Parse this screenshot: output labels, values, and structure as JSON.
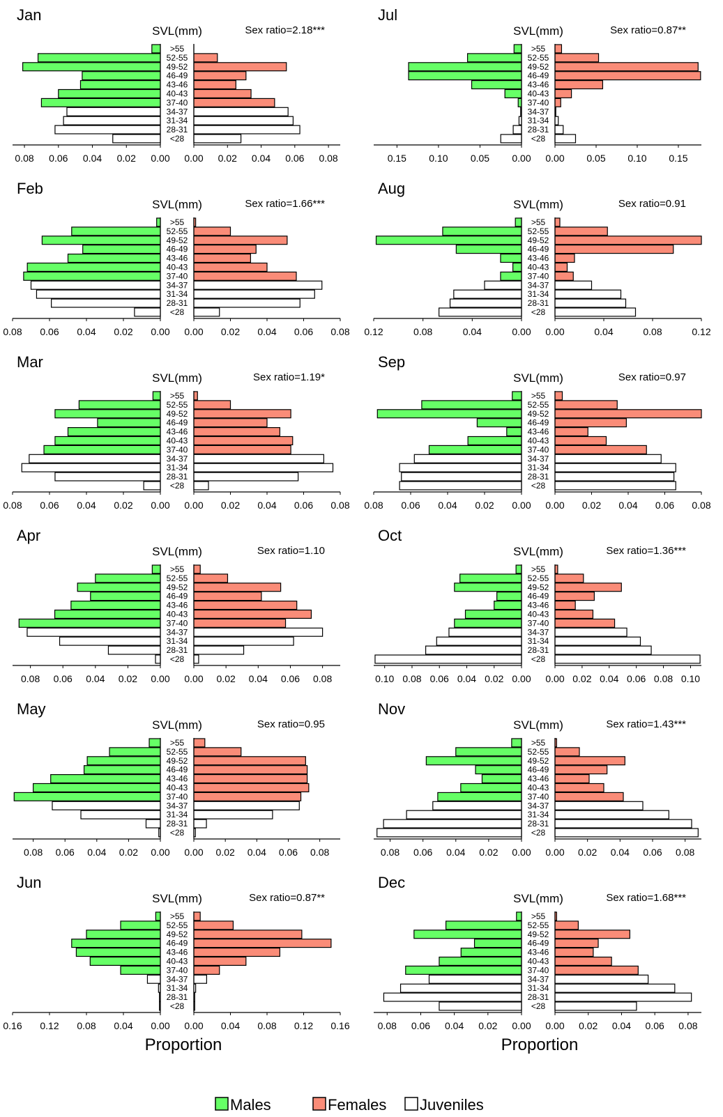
{
  "figure": {
    "axis_label": "Proportion",
    "center_label": "SVL(mm)",
    "legend": [
      {
        "label": "Males",
        "key": "male"
      },
      {
        "label": "Females",
        "key": "female"
      },
      {
        "label": "Juveniles",
        "key": "juvenile"
      }
    ]
  },
  "colors": {
    "male": "#66ff66",
    "female": "#fa8c78",
    "juvenile": "#ffffff",
    "stroke": "#000000"
  },
  "chart_data": [
    {
      "type": "bar",
      "month": "Jan",
      "annotation": "Sex ratio=2.18***",
      "categories": [
        ">55",
        "52-55",
        "49-52",
        "46-49",
        "43-46",
        "40-43",
        "37-40",
        "34-37",
        "31-34",
        "28-31",
        "<28"
      ],
      "x_left": [
        "0.08",
        "0.06",
        "0.04",
        "0.02",
        "0.00"
      ],
      "x_right": [
        "0.00",
        "0.02",
        "0.04",
        "0.06",
        "0.08"
      ],
      "xlim": [
        0,
        0.087
      ],
      "left": [
        0.005,
        0.072,
        0.081,
        0.046,
        0.047,
        0.06,
        0.07,
        0.055,
        0.057,
        0.062,
        0.028
      ],
      "right": [
        0,
        0.014,
        0.055,
        0.031,
        0.025,
        0.034,
        0.048,
        0.056,
        0.059,
        0.063,
        0.028
      ],
      "left_kind": [
        "male",
        "male",
        "male",
        "male",
        "male",
        "male",
        "male",
        "juvenile",
        "juvenile",
        "juvenile",
        "juvenile"
      ],
      "right_kind": [
        "female",
        "female",
        "female",
        "female",
        "female",
        "female",
        "female",
        "juvenile",
        "juvenile",
        "juvenile",
        "juvenile"
      ]
    },
    {
      "type": "bar",
      "month": "Jul",
      "annotation": "Sex ratio=0.87**",
      "categories": [
        ">55",
        "52-55",
        "49-52",
        "46-49",
        "43-46",
        "40-43",
        "37-40",
        "34-37",
        "31-34",
        "28-31",
        "<28"
      ],
      "x_left": [
        "0.15",
        "0.10",
        "0.05",
        "0.00"
      ],
      "x_right": [
        "0.00",
        "0.05",
        "0.10",
        "0.15"
      ],
      "xlim": [
        0,
        0.178
      ],
      "left": [
        0.009,
        0.065,
        0.136,
        0.136,
        0.06,
        0.02,
        0.004,
        0.001,
        0.003,
        0.01,
        0.025
      ],
      "right": [
        0.008,
        0.053,
        0.174,
        0.177,
        0.058,
        0.02,
        0.007,
        0.001,
        0.004,
        0.01,
        0.025
      ],
      "left_kind": [
        "male",
        "male",
        "male",
        "male",
        "male",
        "male",
        "male",
        "juvenile",
        "juvenile",
        "juvenile",
        "juvenile"
      ],
      "right_kind": [
        "female",
        "female",
        "female",
        "female",
        "female",
        "female",
        "female",
        "juvenile",
        "juvenile",
        "juvenile",
        "juvenile"
      ]
    },
    {
      "type": "bar",
      "month": "Feb",
      "annotation": "Sex ratio=1.66***",
      "categories": [
        ">55",
        "52-55",
        "49-52",
        "46-49",
        "43-46",
        "40-43",
        "37-40",
        "34-37",
        "31-34",
        "28-31",
        "<28"
      ],
      "x_left": [
        "0.08",
        "0.06",
        "0.04",
        "0.02",
        "0.00"
      ],
      "x_right": [
        "0.00",
        "0.02",
        "0.04",
        "0.06",
        "0.08"
      ],
      "xlim": [
        0,
        0.08
      ],
      "left": [
        0.002,
        0.048,
        0.064,
        0.042,
        0.05,
        0.072,
        0.074,
        0.07,
        0.067,
        0.059,
        0.014
      ],
      "right": [
        0.001,
        0.02,
        0.051,
        0.034,
        0.031,
        0.04,
        0.056,
        0.07,
        0.066,
        0.058,
        0.014
      ],
      "left_kind": [
        "male",
        "male",
        "male",
        "male",
        "male",
        "male",
        "male",
        "juvenile",
        "juvenile",
        "juvenile",
        "juvenile"
      ],
      "right_kind": [
        "female",
        "female",
        "female",
        "female",
        "female",
        "female",
        "female",
        "juvenile",
        "juvenile",
        "juvenile",
        "juvenile"
      ]
    },
    {
      "type": "bar",
      "month": "Aug",
      "annotation": "Sex ratio=0.91",
      "categories": [
        ">55",
        "52-55",
        "49-52",
        "46-49",
        "43-46",
        "40-43",
        "37-40",
        "34-37",
        "31-34",
        "28-31",
        "<28"
      ],
      "x_left": [
        "0.12",
        "0.08",
        "0.04",
        "0.00"
      ],
      "x_right": [
        "0.00",
        "0.04",
        "0.08",
        "0.12"
      ],
      "xlim": [
        0,
        0.12
      ],
      "left": [
        0.005,
        0.064,
        0.118,
        0.053,
        0.017,
        0.007,
        0.017,
        0.03,
        0.055,
        0.058,
        0.067
      ],
      "right": [
        0.004,
        0.043,
        0.12,
        0.097,
        0.016,
        0.01,
        0.015,
        0.03,
        0.054,
        0.058,
        0.066
      ],
      "left_kind": [
        "male",
        "male",
        "male",
        "male",
        "male",
        "male",
        "male",
        "juvenile",
        "juvenile",
        "juvenile",
        "juvenile"
      ],
      "right_kind": [
        "female",
        "female",
        "female",
        "female",
        "female",
        "female",
        "female",
        "juvenile",
        "juvenile",
        "juvenile",
        "juvenile"
      ]
    },
    {
      "type": "bar",
      "month": "Mar",
      "annotation": "Sex ratio=1.19*",
      "categories": [
        ">55",
        "52-55",
        "49-52",
        "46-49",
        "43-46",
        "40-43",
        "37-40",
        "34-37",
        "31-34",
        "28-31",
        "<28"
      ],
      "x_left": [
        "0.08",
        "0.06",
        "0.04",
        "0.02",
        "0.00"
      ],
      "x_right": [
        "0.00",
        "0.02",
        "0.04",
        "0.06",
        "0.08"
      ],
      "xlim": [
        0,
        0.08
      ],
      "left": [
        0.004,
        0.044,
        0.057,
        0.034,
        0.05,
        0.057,
        0.063,
        0.071,
        0.075,
        0.057,
        0.009
      ],
      "right": [
        0.002,
        0.02,
        0.053,
        0.04,
        0.047,
        0.054,
        0.053,
        0.071,
        0.076,
        0.057,
        0.008
      ],
      "left_kind": [
        "male",
        "male",
        "male",
        "male",
        "male",
        "male",
        "male",
        "juvenile",
        "juvenile",
        "juvenile",
        "juvenile"
      ],
      "right_kind": [
        "female",
        "female",
        "female",
        "female",
        "female",
        "female",
        "female",
        "juvenile",
        "juvenile",
        "juvenile",
        "juvenile"
      ]
    },
    {
      "type": "bar",
      "month": "Sep",
      "annotation": "Sex ratio=0.97",
      "categories": [
        ">55",
        "52-55",
        "49-52",
        "46-49",
        "43-46",
        "40-43",
        "37-40",
        "34-37",
        "31-34",
        "28-31",
        "<28"
      ],
      "x_left": [
        "0.08",
        "0.06",
        "0.04",
        "0.02",
        "0.00"
      ],
      "x_right": [
        "0.00",
        "0.02",
        "0.04",
        "0.06",
        "0.08"
      ],
      "xlim": [
        0,
        0.08
      ],
      "left": [
        0.005,
        0.054,
        0.078,
        0.024,
        0.008,
        0.029,
        0.05,
        0.058,
        0.066,
        0.065,
        0.066
      ],
      "right": [
        0.004,
        0.034,
        0.08,
        0.039,
        0.018,
        0.028,
        0.05,
        0.058,
        0.066,
        0.065,
        0.066
      ],
      "left_kind": [
        "male",
        "male",
        "male",
        "male",
        "male",
        "male",
        "male",
        "juvenile",
        "juvenile",
        "juvenile",
        "juvenile"
      ],
      "right_kind": [
        "female",
        "female",
        "female",
        "female",
        "female",
        "female",
        "female",
        "juvenile",
        "juvenile",
        "juvenile",
        "juvenile"
      ]
    },
    {
      "type": "bar",
      "month": "Apr",
      "annotation": "Sex ratio=1.10",
      "categories": [
        ">55",
        "52-55",
        "49-52",
        "46-49",
        "43-46",
        "40-43",
        "37-40",
        "34-37",
        "31-34",
        "28-31",
        "<28"
      ],
      "x_left": [
        "0.08",
        "0.06",
        "0.04",
        "0.02",
        "0.00"
      ],
      "x_right": [
        "0.00",
        "0.02",
        "0.04",
        "0.06",
        "0.08"
      ],
      "xlim": [
        0,
        0.091
      ],
      "left": [
        0.005,
        0.04,
        0.051,
        0.043,
        0.055,
        0.065,
        0.087,
        0.082,
        0.062,
        0.032,
        0.003
      ],
      "right": [
        0.004,
        0.021,
        0.054,
        0.042,
        0.064,
        0.073,
        0.057,
        0.08,
        0.062,
        0.031,
        0.003
      ],
      "left_kind": [
        "male",
        "male",
        "male",
        "male",
        "male",
        "male",
        "male",
        "juvenile",
        "juvenile",
        "juvenile",
        "juvenile"
      ],
      "right_kind": [
        "female",
        "female",
        "female",
        "female",
        "female",
        "female",
        "female",
        "juvenile",
        "juvenile",
        "juvenile",
        "juvenile"
      ]
    },
    {
      "type": "bar",
      "month": "Oct",
      "annotation": "Sex ratio=1.36***",
      "categories": [
        ">55",
        "52-55",
        "49-52",
        "46-49",
        "43-46",
        "40-43",
        "37-40",
        "34-37",
        "31-34",
        "28-31",
        "<28"
      ],
      "x_left": [
        "0.10",
        "0.08",
        "0.06",
        "0.04",
        "0.02",
        "0.00"
      ],
      "x_right": [
        "0.00",
        "0.02",
        "0.04",
        "0.06",
        "0.08",
        "0.10"
      ],
      "xlim": [
        0,
        0.108
      ],
      "left": [
        0.004,
        0.045,
        0.049,
        0.018,
        0.02,
        0.041,
        0.049,
        0.053,
        0.062,
        0.07,
        0.107
      ],
      "right": [
        0.002,
        0.021,
        0.049,
        0.029,
        0.015,
        0.028,
        0.044,
        0.053,
        0.063,
        0.071,
        0.107
      ],
      "left_kind": [
        "male",
        "male",
        "male",
        "male",
        "male",
        "male",
        "male",
        "juvenile",
        "juvenile",
        "juvenile",
        "juvenile"
      ],
      "right_kind": [
        "female",
        "female",
        "female",
        "female",
        "female",
        "female",
        "female",
        "juvenile",
        "juvenile",
        "juvenile",
        "juvenile"
      ]
    },
    {
      "type": "bar",
      "month": "May",
      "annotation": "Sex ratio=0.95",
      "categories": [
        ">55",
        "52-55",
        "49-52",
        "46-49",
        "43-46",
        "40-43",
        "37-40",
        "34-37",
        "31-34",
        "28-31",
        "<28"
      ],
      "x_left": [
        "0.08",
        "0.06",
        "0.04",
        "0.02",
        "0.00"
      ],
      "x_right": [
        "0.00",
        "0.02",
        "0.04",
        "0.06",
        "0.08"
      ],
      "xlim": [
        0,
        0.093
      ],
      "left": [
        0.007,
        0.032,
        0.046,
        0.048,
        0.069,
        0.08,
        0.092,
        0.068,
        0.05,
        0.009,
        0.001
      ],
      "right": [
        0.007,
        0.03,
        0.071,
        0.072,
        0.072,
        0.073,
        0.068,
        0.067,
        0.05,
        0.008,
        0.001
      ],
      "left_kind": [
        "male",
        "male",
        "male",
        "male",
        "male",
        "male",
        "male",
        "juvenile",
        "juvenile",
        "juvenile",
        "juvenile"
      ],
      "right_kind": [
        "female",
        "female",
        "female",
        "female",
        "female",
        "female",
        "female",
        "juvenile",
        "juvenile",
        "juvenile",
        "juvenile"
      ]
    },
    {
      "type": "bar",
      "month": "Nov",
      "annotation": "Sex ratio=1.43***",
      "categories": [
        ">55",
        "52-55",
        "49-52",
        "46-49",
        "43-46",
        "40-43",
        "37-40",
        "34-37",
        "31-34",
        "28-31",
        "<28"
      ],
      "x_left": [
        "0.08",
        "0.06",
        "0.04",
        "0.02",
        "0.00"
      ],
      "x_right": [
        "0.00",
        "0.02",
        "0.04",
        "0.06",
        "0.08"
      ],
      "xlim": [
        0,
        0.09
      ],
      "left": [
        0.006,
        0.04,
        0.058,
        0.028,
        0.024,
        0.037,
        0.051,
        0.054,
        0.07,
        0.084,
        0.088
      ],
      "right": [
        0.001,
        0.015,
        0.043,
        0.032,
        0.021,
        0.03,
        0.042,
        0.054,
        0.07,
        0.084,
        0.088
      ],
      "left_kind": [
        "male",
        "male",
        "male",
        "male",
        "male",
        "male",
        "male",
        "juvenile",
        "juvenile",
        "juvenile",
        "juvenile"
      ],
      "right_kind": [
        "female",
        "female",
        "female",
        "female",
        "female",
        "female",
        "female",
        "juvenile",
        "juvenile",
        "juvenile",
        "juvenile"
      ]
    },
    {
      "type": "bar",
      "month": "Jun",
      "annotation": "Sex ratio=0.87**",
      "categories": [
        ">55",
        "52-55",
        "49-52",
        "46-49",
        "43-46",
        "40-43",
        "37-40",
        "34-37",
        "31-34",
        "28-31",
        "<28"
      ],
      "x_left": [
        "0.16",
        "0.12",
        "0.08",
        "0.04",
        "0.00"
      ],
      "x_right": [
        "0.00",
        "0.04",
        "0.08",
        "0.12",
        "0.16"
      ],
      "xlim": [
        0,
        0.16
      ],
      "left": [
        0.005,
        0.043,
        0.08,
        0.096,
        0.091,
        0.076,
        0.043,
        0.014,
        0.002,
        0.001,
        0.001
      ],
      "right": [
        0.007,
        0.043,
        0.118,
        0.15,
        0.094,
        0.057,
        0.028,
        0.014,
        0.002,
        0.001,
        0.001
      ],
      "left_kind": [
        "male",
        "male",
        "male",
        "male",
        "male",
        "male",
        "male",
        "juvenile",
        "juvenile",
        "juvenile",
        "juvenile"
      ],
      "right_kind": [
        "female",
        "female",
        "female",
        "female",
        "female",
        "female",
        "female",
        "juvenile",
        "juvenile",
        "juvenile",
        "juvenile"
      ]
    },
    {
      "type": "bar",
      "month": "Dec",
      "annotation": "Sex ratio=1.68***",
      "categories": [
        ">55",
        "52-55",
        "49-52",
        "46-49",
        "43-46",
        "40-43",
        "37-40",
        "34-37",
        "31-34",
        "28-31",
        "<28"
      ],
      "x_left": [
        "0.08",
        "0.06",
        "0.04",
        "0.02",
        "0.00"
      ],
      "x_right": [
        "0.00",
        "0.02",
        "0.04",
        "0.06",
        "0.08"
      ],
      "xlim": [
        0,
        0.088
      ],
      "left": [
        0.003,
        0.045,
        0.064,
        0.028,
        0.036,
        0.049,
        0.069,
        0.055,
        0.072,
        0.082,
        0.049
      ],
      "right": [
        0.001,
        0.014,
        0.045,
        0.026,
        0.023,
        0.034,
        0.05,
        0.056,
        0.072,
        0.082,
        0.049
      ],
      "left_kind": [
        "male",
        "male",
        "male",
        "male",
        "male",
        "male",
        "male",
        "juvenile",
        "juvenile",
        "juvenile",
        "juvenile"
      ],
      "right_kind": [
        "female",
        "female",
        "female",
        "female",
        "female",
        "female",
        "female",
        "juvenile",
        "juvenile",
        "juvenile",
        "juvenile"
      ]
    }
  ]
}
